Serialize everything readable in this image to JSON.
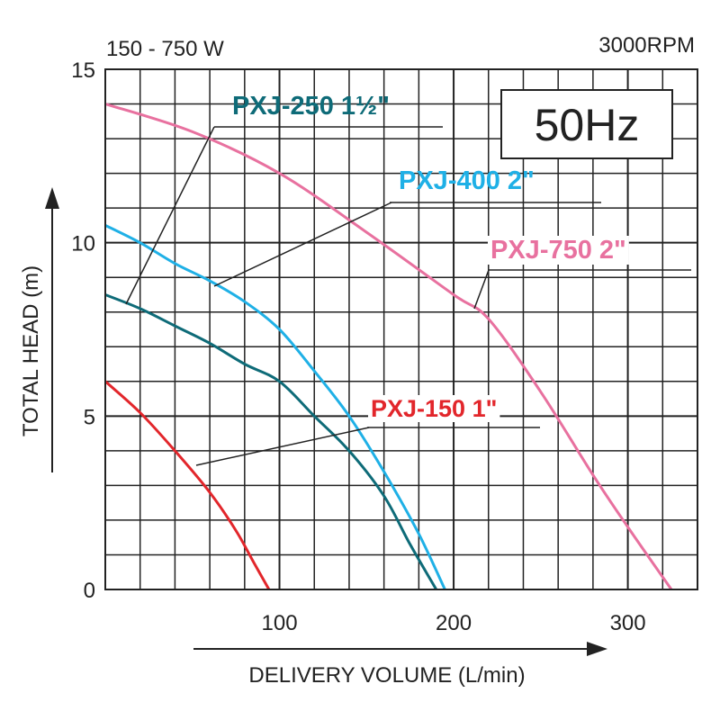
{
  "chart_data": {
    "type": "line",
    "top_left_text": "150 - 750 W",
    "top_right_text": "3000RPM",
    "frequency_label": "50Hz",
    "xlabel": "DELIVERY VOLUME (L/min)",
    "ylabel": "TOTAL HEAD (m)",
    "xlim": [
      0,
      340
    ],
    "ylim": [
      0,
      15
    ],
    "x_ticks": [
      100,
      200,
      300
    ],
    "x_tick_labels": [
      "100",
      "200",
      "300"
    ],
    "y_ticks": [
      0,
      5,
      10,
      15
    ],
    "y_tick_labels": [
      "0",
      "5",
      "10",
      "15"
    ],
    "grid": true,
    "series": [
      {
        "name": "PXJ-150 1\"",
        "color": "#e2262b",
        "points": [
          [
            0,
            6.0
          ],
          [
            20,
            5.1
          ],
          [
            40,
            4.0
          ],
          [
            60,
            2.8
          ],
          [
            75,
            1.7
          ],
          [
            85,
            0.8
          ],
          [
            94,
            0
          ]
        ]
      },
      {
        "name": "PXJ-250 1½\"",
        "color": "#0e6b78",
        "points": [
          [
            0,
            8.5
          ],
          [
            20,
            8.1
          ],
          [
            40,
            7.6
          ],
          [
            60,
            7.1
          ],
          [
            80,
            6.5
          ],
          [
            100,
            6.0
          ],
          [
            120,
            5.0
          ],
          [
            140,
            4.0
          ],
          [
            160,
            2.7
          ],
          [
            175,
            1.3
          ],
          [
            190,
            0
          ]
        ]
      },
      {
        "name": "PXJ-400 2\"",
        "color": "#1fb0e6",
        "points": [
          [
            0,
            10.5
          ],
          [
            20,
            10.0
          ],
          [
            40,
            9.4
          ],
          [
            60,
            8.9
          ],
          [
            80,
            8.3
          ],
          [
            100,
            7.5
          ],
          [
            120,
            6.3
          ],
          [
            140,
            5.0
          ],
          [
            160,
            3.4
          ],
          [
            180,
            1.6
          ],
          [
            195,
            0
          ]
        ]
      },
      {
        "name": "PXJ-750 2\"",
        "color": "#e8719f",
        "points": [
          [
            0,
            14.0
          ],
          [
            50,
            13.2
          ],
          [
            100,
            12.0
          ],
          [
            150,
            10.3
          ],
          [
            200,
            8.5
          ],
          [
            220,
            7.8
          ],
          [
            250,
            5.7
          ],
          [
            280,
            3.3
          ],
          [
            300,
            1.8
          ],
          [
            325,
            0
          ]
        ]
      }
    ],
    "series_labels": [
      {
        "series": 0,
        "text": "PXJ-150 1\"",
        "color": "#e2262b"
      },
      {
        "series": 1,
        "text": "PXJ-250 1½\"",
        "color": "#0e6b78"
      },
      {
        "series": 2,
        "text": "PXJ-400 2\"",
        "color": "#1fb0e6"
      },
      {
        "series": 3,
        "text": "PXJ-750 2\"",
        "color": "#e8719f"
      }
    ]
  }
}
